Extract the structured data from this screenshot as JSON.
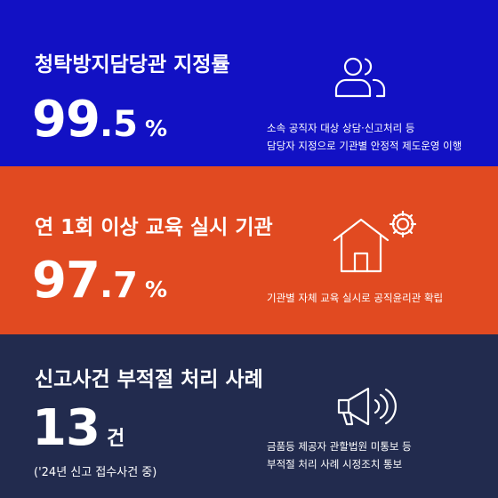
{
  "sections": [
    {
      "title": "청탁방지담당관 지정률",
      "value_int": "99",
      "value_dec": ".5",
      "unit": "%",
      "desc": [
        "소속 공직자 대상 상담·신고처리 등",
        "담당자 지정으로 기관별 안정적 제도운영 이행"
      ],
      "icon": "people-icon",
      "bg": "#1211c4"
    },
    {
      "title": "연 1회 이상 교육 실시 기관",
      "value_int": "97",
      "value_dec": ".7",
      "unit": "%",
      "desc": [
        "기관별 자체 교육 실시로 공직윤리관 확립"
      ],
      "icon": "house-gear-icon",
      "bg": "#e14a21"
    },
    {
      "title": "신고사건 부적절 처리 사례",
      "value_int": "13",
      "unit": "건",
      "note": "('24년 신고 접수사건 중)",
      "desc": [
        "금품등 제공자 관할법원 미통보 등",
        "부적절 처리 사례 시정조치 통보"
      ],
      "icon": "megaphone-icon",
      "bg": "#222b4e"
    }
  ]
}
